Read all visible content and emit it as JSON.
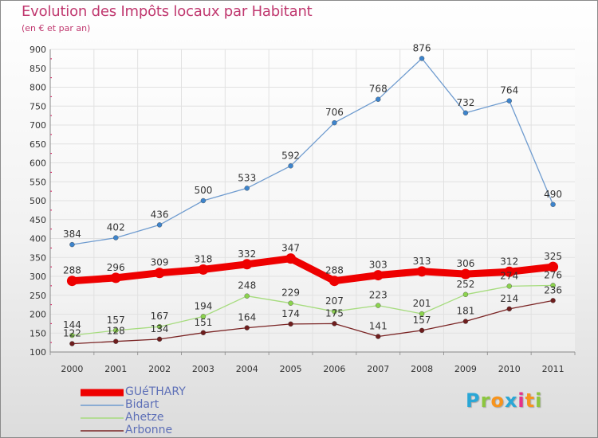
{
  "header": {
    "title": "Evolution des Impôts locaux par Habitant",
    "subtitle": "(en € et par an)"
  },
  "brand": {
    "name": "Proxiti",
    "letter_colors": [
      "#2aa7d6",
      "#8cc63f",
      "#f7941d",
      "#2aa7d6",
      "#e6308a",
      "#f7941d",
      "#8cc63f"
    ]
  },
  "colors": {
    "title": "#c0386f",
    "legend_text": "#5d6fb7",
    "tick_marks": "#d9004c"
  },
  "chart_data": {
    "type": "line",
    "title": "Evolution des Impôts locaux par Habitant",
    "subtitle": "(en € et par an)",
    "xlabel": "",
    "ylabel": "",
    "x": [
      "2000",
      "2001",
      "2002",
      "2003",
      "2004",
      "2005",
      "2006",
      "2007",
      "2008",
      "2009",
      "2010",
      "2011"
    ],
    "yticks": [
      100,
      150,
      200,
      250,
      300,
      350,
      400,
      450,
      500,
      550,
      600,
      650,
      700,
      750,
      800,
      850,
      900
    ],
    "ylim": [
      100,
      900
    ],
    "grid": true,
    "legend_position": "bottom-left",
    "series": [
      {
        "name": "GUéTHARY",
        "values": [
          288,
          296,
          309,
          318,
          332,
          347,
          288,
          303,
          313,
          306,
          312,
          325
        ],
        "color": "#ee0000",
        "emphasis": true
      },
      {
        "name": "Bidart",
        "values": [
          384,
          402,
          436,
          500,
          533,
          592,
          706,
          768,
          876,
          732,
          764,
          490
        ],
        "color": "#6e9bcf",
        "marker_color": "#3d84cc"
      },
      {
        "name": "Ahetze",
        "values": [
          144,
          157,
          167,
          194,
          248,
          229,
          207,
          223,
          201,
          252,
          274,
          276
        ],
        "color": "#a6dc7e",
        "marker_color": "#8bd34d"
      },
      {
        "name": "Arbonne",
        "values": [
          122,
          128,
          134,
          151,
          164,
          174,
          175,
          141,
          157,
          181,
          214,
          236
        ],
        "color": "#7a2424",
        "marker_color": "#6e1d1d"
      }
    ]
  }
}
